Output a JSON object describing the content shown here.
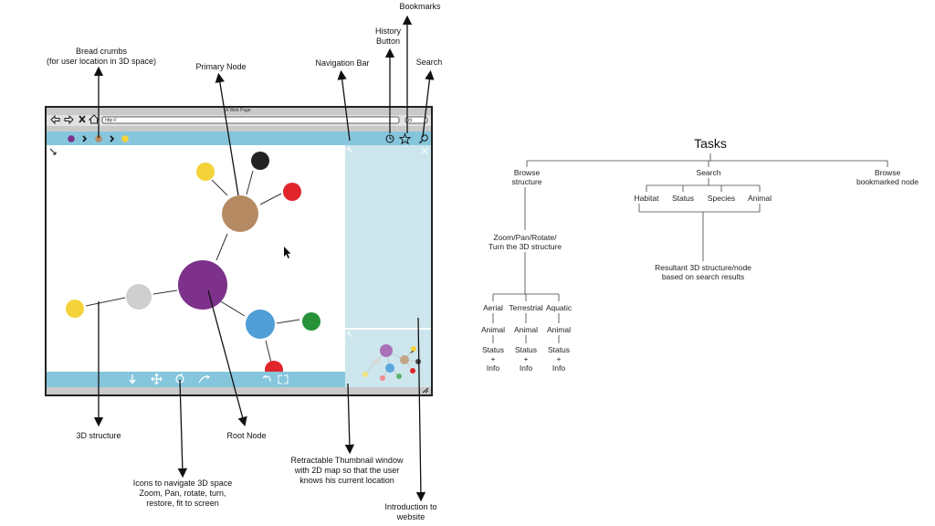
{
  "annotations": {
    "bookmarks": "Bookmarks",
    "history_line1": "History",
    "history_line2": "Button",
    "bread_line1": "Bread crumbs",
    "bread_line2": "(for user location in 3D space)",
    "primary_node": "Primary Node",
    "navigation_bar": "Navigation Bar",
    "search": "Search",
    "structure_3d": "3D structure",
    "root_node": "Root Node",
    "thumb_line1": "Retractable Thumbnail window",
    "thumb_line2": "with 2D map so that the user",
    "thumb_line3": "knows his current location",
    "icons_line1": "Icons to navigate 3D space",
    "icons_line2": "Zoom, Pan, rotate, turn,",
    "icons_line3": "restore, fit to screen",
    "intro_line1": "Introduction to",
    "intro_line2": "website"
  },
  "mockup": {
    "window_title": "A Web Page",
    "url": "http://"
  },
  "tasks": {
    "title": "Tasks",
    "browse_line1": "Browse",
    "browse_line2": "structure",
    "search": "Search",
    "bookmarked_line1": "Browse",
    "bookmarked_line2": "bookmarked node",
    "habitat": "Habitat",
    "status": "Status",
    "species": "Species",
    "animal": "Animal",
    "zoom_line1": "Zoom/Pan/Rotate/",
    "zoom_line2": "Turn the 3D structure",
    "result_line1": "Resultant 3D structure/node",
    "result_line2": "based on search results",
    "aerial": "Aerial",
    "terrestrial": "Terrestrial",
    "aquatic": "Aquatic",
    "leaf_animal": "Animal",
    "leaf_status": "Status",
    "leaf_plus": "+",
    "leaf_info": "Info"
  },
  "colors": {
    "nav_blue": "#86c6dc",
    "panel_blue": "#cde6ed",
    "frame_gray": "#c9c9c9",
    "node_brown": "#b58a63",
    "node_purple": "#7d318a",
    "node_blue": "#4f9ed6",
    "node_gray": "#cfcfcf",
    "node_yellow": "#f4d33a",
    "node_black": "#222222",
    "node_red": "#e0252b",
    "node_green": "#279238"
  }
}
